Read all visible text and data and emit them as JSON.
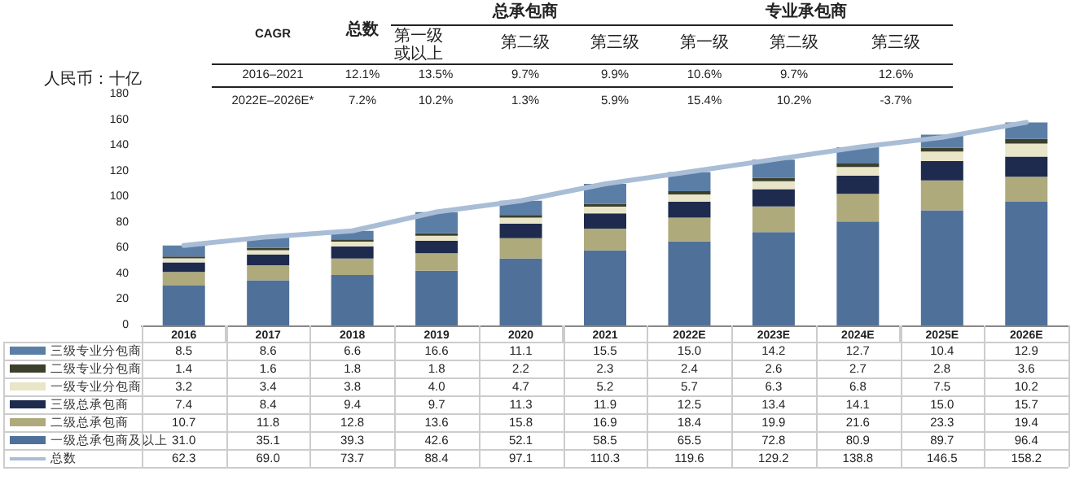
{
  "chart_data": {
    "type": "bar",
    "stacked": true,
    "ylabel": "人民币：十亿",
    "categories": [
      "2016",
      "2017",
      "2018",
      "2019",
      "2020",
      "2021",
      "2022E",
      "2023E",
      "2024E",
      "2025E",
      "2026E"
    ],
    "series": [
      {
        "name": "一级总承包商及以上",
        "color": "#4f7099",
        "values": [
          31.0,
          35.1,
          39.3,
          42.6,
          52.1,
          58.5,
          65.5,
          72.8,
          80.9,
          89.7,
          96.4
        ],
        "value_labels": [
          "31.0",
          "35.1",
          "39.3",
          "42.6",
          "52.1",
          "58.5",
          "65.5",
          "72.8",
          "80.9",
          "89.7",
          "96.4"
        ]
      },
      {
        "name": "二级总承包商",
        "color": "#aeaa7c",
        "values": [
          10.7,
          11.8,
          12.8,
          13.6,
          15.8,
          16.9,
          18.4,
          19.9,
          21.6,
          23.3,
          19.4
        ],
        "value_labels": [
          "10.7",
          "11.8",
          "12.8",
          "13.6",
          "15.8",
          "16.9",
          "18.4",
          "19.9",
          "21.6",
          "23.3",
          "19.4"
        ]
      },
      {
        "name": "三级总承包商",
        "color": "#1e2b4e",
        "values": [
          7.4,
          8.4,
          9.4,
          9.7,
          11.3,
          11.9,
          12.5,
          13.4,
          14.1,
          15.0,
          15.7
        ],
        "value_labels": [
          "7.4",
          "8.4",
          "9.4",
          "9.7",
          "11.3",
          "11.9",
          "12.5",
          "13.4",
          "14.1",
          "15.0",
          "15.7"
        ]
      },
      {
        "name": "一级专业分包商",
        "color": "#e8e5c8",
        "values": [
          3.2,
          3.4,
          3.8,
          4.0,
          4.7,
          5.2,
          5.7,
          6.3,
          6.8,
          7.5,
          10.2
        ],
        "value_labels": [
          "3.2",
          "3.4",
          "3.8",
          "4.0",
          "4.7",
          "5.2",
          "5.7",
          "6.3",
          "6.8",
          "7.5",
          "10.2"
        ]
      },
      {
        "name": "二级专业分包商",
        "color": "#3b3f2c",
        "values": [
          1.4,
          1.6,
          1.8,
          1.8,
          2.2,
          2.3,
          2.4,
          2.6,
          2.7,
          2.8,
          3.6
        ],
        "value_labels": [
          "1.4",
          "1.6",
          "1.8",
          "1.8",
          "2.2",
          "2.3",
          "2.4",
          "2.6",
          "2.7",
          "2.8",
          "3.6"
        ]
      },
      {
        "name": "三级专业分包商",
        "color": "#5b7ea6",
        "values": [
          8.5,
          8.6,
          6.6,
          16.6,
          11.1,
          15.5,
          15.0,
          14.2,
          12.7,
          10.4,
          12.9
        ],
        "value_labels": [
          "8.5",
          "8.6",
          "6.6",
          "16.6",
          "11.1",
          "15.5",
          "15.0",
          "14.2",
          "12.7",
          "10.4",
          "12.9"
        ]
      },
      {
        "name": "总数",
        "type": "line",
        "color": "#a9bdd6",
        "values": [
          62.3,
          69.0,
          73.7,
          88.4,
          97.1,
          110.3,
          119.6,
          129.2,
          138.8,
          146.5,
          158.2
        ],
        "value_labels": [
          "62.3",
          "69.0",
          "73.7",
          "88.4",
          "97.1",
          "110.3",
          "119.6",
          "129.2",
          "138.8",
          "146.5",
          "158.2"
        ]
      }
    ],
    "ylim": [
      0,
      180
    ],
    "yticks": [
      0,
      20,
      40,
      60,
      80,
      100,
      120,
      140,
      160,
      180
    ],
    "grid": false,
    "legend": "bottom",
    "marker": "none",
    "line_style": "solid",
    "annotations": [
      "CAGR",
      "总数",
      "第一级或以上",
      "第二级",
      "第三级",
      "第一级",
      "第二级",
      "第三级",
      "总承包商",
      "专业承包商",
      "2016–2021",
      "12.1%",
      "13.5%",
      "9.7%",
      "9.9%",
      "10.6%",
      "9.7%",
      "12.6%",
      "2022E–2026E*",
      "7.2%",
      "10.2%",
      "1.3%",
      "5.9%",
      "15.4%",
      "10.2%",
      "-3.7%"
    ]
  }
}
